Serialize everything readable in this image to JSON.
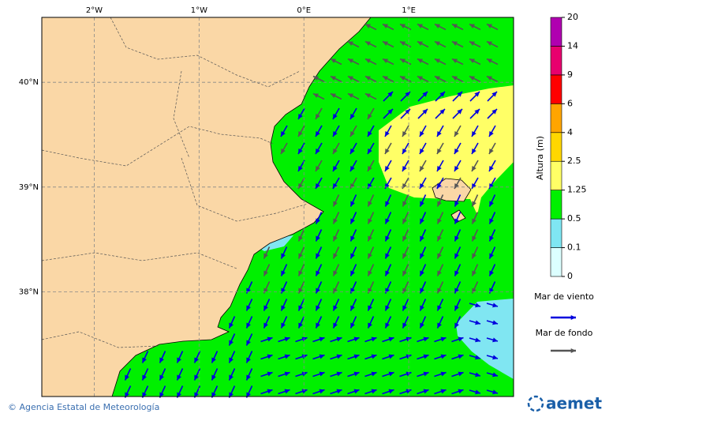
{
  "map": {
    "xlim": [
      -2.5,
      2.0
    ],
    "ylim": [
      37.0,
      40.62
    ],
    "xticks": [
      {
        "value": -2,
        "label": "2°W"
      },
      {
        "value": -1,
        "label": "1°W"
      },
      {
        "value": 0,
        "label": "0°E"
      },
      {
        "value": 1,
        "label": "1°E"
      }
    ],
    "yticks": [
      {
        "value": 40,
        "label": "40°N"
      },
      {
        "value": 39,
        "label": "39°N"
      },
      {
        "value": 38,
        "label": "38°N"
      }
    ],
    "grid": true
  },
  "colorbar": {
    "label": "Altura (m)",
    "levels": [
      0,
      0.1,
      0.5,
      1.25,
      2.5,
      4,
      6,
      9,
      14,
      20
    ],
    "colors": [
      "#dcffff",
      "#7fe6f2",
      "#00f000",
      "#ffff66",
      "#ffd700",
      "#ffa500",
      "#ff0000",
      "#e8006e",
      "#b000b0"
    ]
  },
  "legend": [
    {
      "name": "Mar de viento",
      "color": "#0000dd"
    },
    {
      "name": "Mar de fondo",
      "color": "#555555"
    }
  ],
  "footer": {
    "credit": "© Agencia Estatal de Meteorología",
    "logo": "aemet"
  }
}
